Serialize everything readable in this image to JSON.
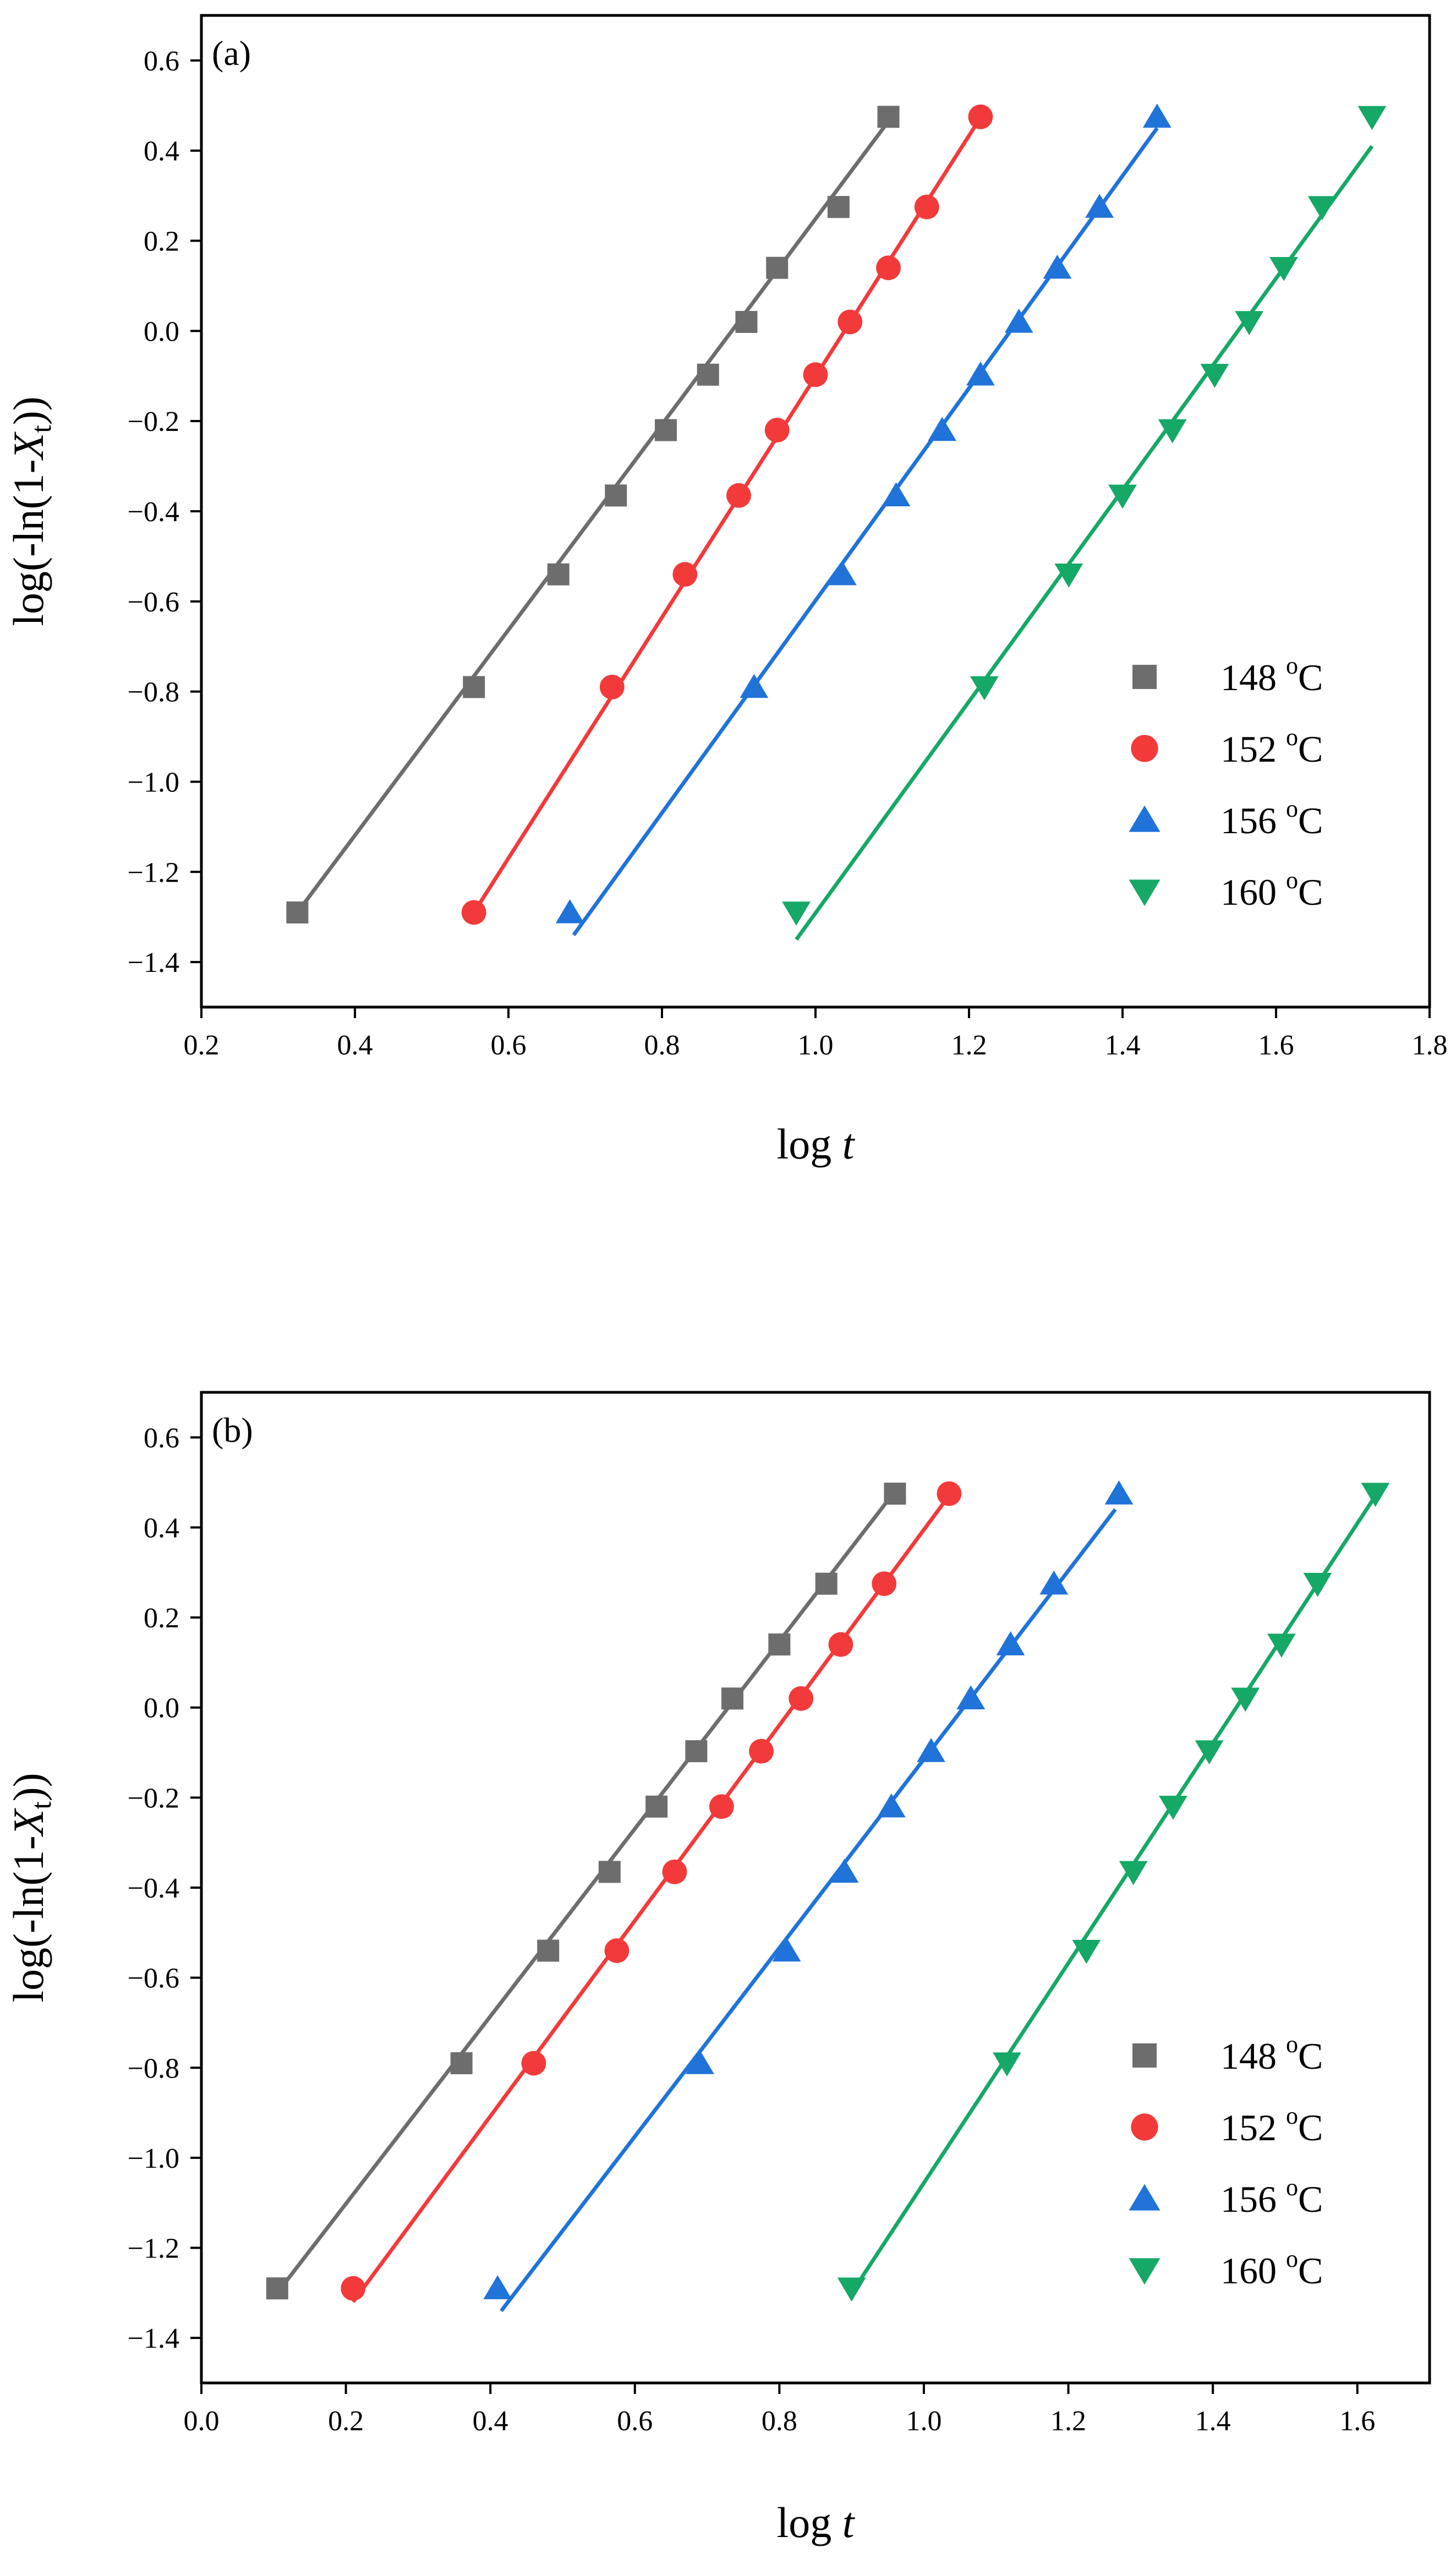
{
  "chart_data": [
    {
      "id": "a",
      "type": "scatter",
      "panel_label": "(a)",
      "xlabel": "log t",
      "ylabel": "log(-ln(1-Xt))",
      "xlim": [
        0.2,
        1.8
      ],
      "ylim": [
        -1.5,
        0.7
      ],
      "xticks": [
        0.2,
        0.4,
        0.6,
        0.8,
        1.0,
        1.2,
        1.4,
        1.6,
        1.8
      ],
      "xtick_labels": [
        "0.2",
        "0.4",
        "0.6",
        "0.8",
        "1.0",
        "1.2",
        "1.4",
        "1.6",
        "1.8"
      ],
      "yticks": [
        -1.4,
        -1.2,
        -1.0,
        -0.8,
        -0.6,
        -0.4,
        -0.2,
        0.0,
        0.2,
        0.4,
        0.6
      ],
      "ytick_labels": [
        "−1.4",
        "−1.2",
        "−1.0",
        "−0.8",
        "−0.6",
        "−0.4",
        "−0.2",
        "0.0",
        "0.2",
        "0.4",
        "0.6"
      ],
      "legend_position": "bottom-right",
      "series": [
        {
          "name": "148 °C",
          "label_num": "148",
          "label_sup": "o",
          "label_unit": "C",
          "marker": "square",
          "color": "#6d6d6d",
          "x": [
            0.325,
            0.555,
            0.665,
            0.74,
            0.805,
            0.86,
            0.91,
            0.95,
            1.03,
            1.095
          ],
          "y": [
            -1.29,
            -0.79,
            -0.54,
            -0.365,
            -0.22,
            -0.097,
            0.02,
            0.14,
            0.275,
            0.475
          ],
          "fit": {
            "x": [
              0.325,
              1.095
            ],
            "y": [
              -1.29,
              0.465
            ]
          }
        },
        {
          "name": "152 °C",
          "label_num": "152",
          "label_sup": "o",
          "label_unit": "C",
          "marker": "circle",
          "color": "#f23a3a",
          "x": [
            0.555,
            0.735,
            0.83,
            0.9,
            0.95,
            1.0,
            1.045,
            1.095,
            1.145,
            1.215
          ],
          "y": [
            -1.29,
            -0.79,
            -0.54,
            -0.365,
            -0.22,
            -0.097,
            0.02,
            0.14,
            0.275,
            0.475
          ],
          "fit": {
            "x": [
              0.555,
              1.21
            ],
            "y": [
              -1.29,
              0.46
            ]
          }
        },
        {
          "name": "156 °C",
          "label_num": "156",
          "label_sup": "o",
          "label_unit": "C",
          "marker": "triangle-up",
          "color": "#1f73d9",
          "x": [
            0.68,
            0.92,
            1.035,
            1.105,
            1.165,
            1.215,
            1.265,
            1.315,
            1.37,
            1.445
          ],
          "y": [
            -1.29,
            -0.79,
            -0.54,
            -0.365,
            -0.22,
            -0.097,
            0.02,
            0.14,
            0.275,
            0.475
          ],
          "fit": {
            "x": [
              0.685,
              1.445
            ],
            "y": [
              -1.34,
              0.45
            ]
          }
        },
        {
          "name": "160 °C",
          "label_num": "160",
          "label_sup": "o",
          "label_unit": "C",
          "marker": "triangle-down",
          "color": "#16a866",
          "x": [
            0.975,
            1.22,
            1.33,
            1.4,
            1.465,
            1.52,
            1.565,
            1.61,
            1.66,
            1.725
          ],
          "y": [
            -1.29,
            -0.79,
            -0.54,
            -0.365,
            -0.22,
            -0.097,
            0.02,
            0.14,
            0.275,
            0.475
          ],
          "fit": {
            "x": [
              0.975,
              1.725
            ],
            "y": [
              -1.35,
              0.41
            ]
          }
        }
      ]
    },
    {
      "id": "b",
      "type": "scatter",
      "panel_label": "(b)",
      "xlabel": "log t",
      "ylabel": "log(-ln(1-Xt))",
      "xlim": [
        0.0,
        1.7
      ],
      "ylim": [
        -1.5,
        0.7
      ],
      "xticks": [
        0.0,
        0.2,
        0.4,
        0.6,
        0.8,
        1.0,
        1.2,
        1.4,
        1.6
      ],
      "xtick_labels": [
        "0.0",
        "0.2",
        "0.4",
        "0.6",
        "0.8",
        "1.0",
        "1.2",
        "1.4",
        "1.6"
      ],
      "yticks": [
        -1.4,
        -1.2,
        -1.0,
        -0.8,
        -0.6,
        -0.4,
        -0.2,
        0.0,
        0.2,
        0.4,
        0.6
      ],
      "ytick_labels": [
        "−1.4",
        "−1.2",
        "−1.0",
        "−0.8",
        "−0.6",
        "−0.4",
        "−0.2",
        "0.0",
        "0.2",
        "0.4",
        "0.6"
      ],
      "legend_position": "bottom-right",
      "series": [
        {
          "name": "148 °C",
          "label_num": "148",
          "label_sup": "o",
          "label_unit": "C",
          "marker": "square",
          "color": "#6d6d6d",
          "x": [
            0.105,
            0.36,
            0.48,
            0.565,
            0.63,
            0.685,
            0.735,
            0.8,
            0.865,
            0.96
          ],
          "y": [
            -1.29,
            -0.79,
            -0.54,
            -0.365,
            -0.22,
            -0.097,
            0.02,
            0.14,
            0.275,
            0.475
          ],
          "fit": {
            "x": [
              0.105,
              0.955
            ],
            "y": [
              -1.3,
              0.47
            ]
          }
        },
        {
          "name": "152 °C",
          "label_num": "152",
          "label_sup": "o",
          "label_unit": "C",
          "marker": "circle",
          "color": "#f23a3a",
          "x": [
            0.21,
            0.46,
            0.575,
            0.655,
            0.72,
            0.775,
            0.83,
            0.885,
            0.945,
            1.035
          ],
          "y": [
            -1.29,
            -0.79,
            -0.54,
            -0.365,
            -0.22,
            -0.097,
            0.02,
            0.14,
            0.275,
            0.475
          ],
          "fit": {
            "x": [
              0.21,
              1.03
            ],
            "y": [
              -1.32,
              0.46
            ]
          }
        },
        {
          "name": "156 °C",
          "label_num": "156",
          "label_sup": "o",
          "label_unit": "C",
          "marker": "triangle-up",
          "color": "#1f73d9",
          "x": [
            0.41,
            0.69,
            0.81,
            0.89,
            0.955,
            1.01,
            1.065,
            1.12,
            1.18,
            1.27
          ],
          "y": [
            -1.29,
            -0.79,
            -0.54,
            -0.365,
            -0.22,
            -0.097,
            0.02,
            0.14,
            0.275,
            0.475
          ],
          "fit": {
            "x": [
              0.415,
              1.265
            ],
            "y": [
              -1.34,
              0.44
            ]
          }
        },
        {
          "name": "160 °C",
          "label_num": "160",
          "label_sup": "o",
          "label_unit": "C",
          "marker": "triangle-down",
          "color": "#16a866",
          "x": [
            0.9,
            1.115,
            1.225,
            1.29,
            1.345,
            1.395,
            1.445,
            1.495,
            1.545,
            1.625
          ],
          "y": [
            -1.29,
            -0.79,
            -0.54,
            -0.365,
            -0.22,
            -0.097,
            0.02,
            0.14,
            0.275,
            0.475
          ],
          "fit": {
            "x": [
              0.9,
              1.625
            ],
            "y": [
              -1.3,
              0.47
            ]
          }
        }
      ]
    }
  ]
}
